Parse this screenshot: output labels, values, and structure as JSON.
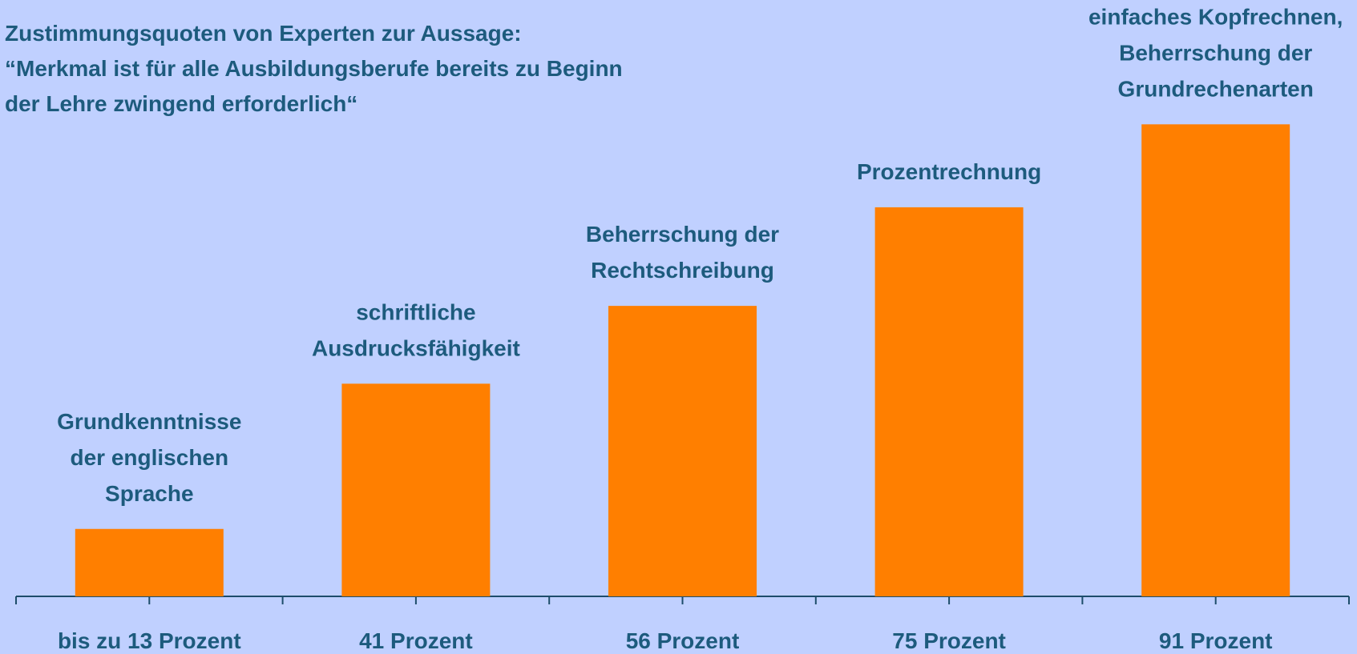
{
  "chart_data": {
    "type": "bar",
    "title": " Zustimmungsquoten von Experten zur Aussage:\n“Merkmal ist für alle Ausbildungsberufe bereits zu Beginn\nder Lehre zwingend erforderlich“",
    "categories": [
      "Grundkenntnisse\nder englischen\nSprache",
      "schriftliche\nAusdrucksfähigkeit",
      "Beherrschung der\nRechtschreibung",
      "Prozentrechnung",
      "einfaches Kopfrechnen,\nBeherrschung der\nGrundrechenarten"
    ],
    "values": [
      13,
      41,
      56,
      75,
      91
    ],
    "value_labels": [
      "bis zu 13 Prozent",
      "41 Prozent",
      "56 Prozent",
      "75 Prozent",
      "91 Prozent"
    ],
    "color": "#ff7f00"
  }
}
